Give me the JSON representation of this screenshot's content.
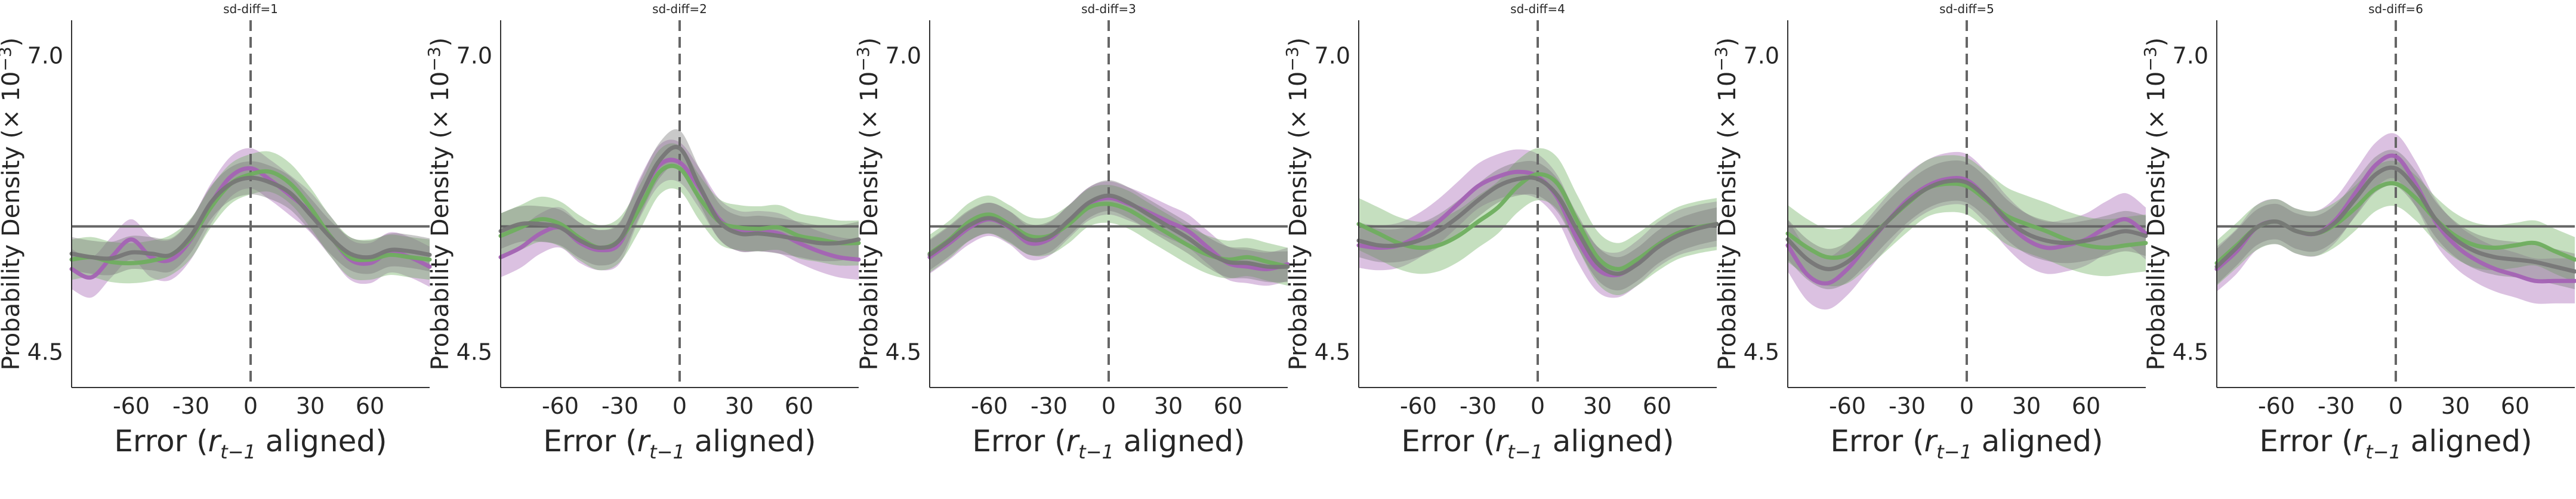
{
  "figure": {
    "xlabel_prefix": "Error (",
    "xlabel_var": "r",
    "xlabel_sub": "t−1",
    "xlabel_suffix": " aligned)",
    "ylabel_prefix": "Probability Density (× 10",
    "ylabel_exp": "−3",
    "ylabel_suffix": ")"
  },
  "colors": {
    "purple": "#a463b4",
    "green": "#6fae5f",
    "gray": "#777777",
    "reference": "#666666"
  },
  "chart_data": [
    {
      "type": "line",
      "title": "sd-diff=1",
      "xlim": [
        -90,
        90
      ],
      "ylim": [
        4.2,
        7.3
      ],
      "xticks": [
        -60,
        -30,
        0,
        30,
        60
      ],
      "xtick_labels": [
        "-60",
        "-30",
        "0",
        "30",
        "60"
      ],
      "yticks": [
        4.5,
        7.0
      ],
      "ytick_labels": [
        "4.5",
        "7.0"
      ],
      "hline": 5.56,
      "vline": 0,
      "x": [
        -90,
        -80,
        -70,
        -60,
        -50,
        -40,
        -30,
        -20,
        -10,
        0,
        10,
        20,
        30,
        40,
        50,
        60,
        70,
        80,
        90
      ],
      "series": [
        {
          "color_key": "purple",
          "values": [
            5.2,
            5.13,
            5.3,
            5.45,
            5.3,
            5.28,
            5.45,
            5.75,
            5.98,
            6.05,
            5.95,
            5.82,
            5.68,
            5.48,
            5.28,
            5.25,
            5.34,
            5.3,
            5.22
          ],
          "band": 0.17
        },
        {
          "color_key": "green",
          "values": [
            5.28,
            5.3,
            5.26,
            5.25,
            5.27,
            5.32,
            5.46,
            5.72,
            5.92,
            6.0,
            6.02,
            5.92,
            5.72,
            5.48,
            5.3,
            5.28,
            5.32,
            5.3,
            5.28
          ],
          "band": 0.17
        },
        {
          "color_key": "gray",
          "values": [
            5.33,
            5.3,
            5.29,
            5.34,
            5.33,
            5.32,
            5.48,
            5.76,
            5.92,
            5.97,
            5.93,
            5.84,
            5.66,
            5.47,
            5.33,
            5.3,
            5.36,
            5.35,
            5.32
          ],
          "band": 0.14
        }
      ]
    },
    {
      "type": "line",
      "title": "sd-diff=2",
      "xlim": [
        -90,
        90
      ],
      "ylim": [
        4.2,
        7.3
      ],
      "xticks": [
        -60,
        -30,
        0,
        30,
        60
      ],
      "xtick_labels": [
        "-60",
        "-30",
        "0",
        "30",
        "60"
      ],
      "yticks": [
        4.5,
        7.0
      ],
      "ytick_labels": [
        "4.5",
        "7.0"
      ],
      "hline": 5.56,
      "vline": 0,
      "x": [
        -90,
        -80,
        -70,
        -60,
        -50,
        -40,
        -30,
        -20,
        -10,
        0,
        10,
        20,
        30,
        40,
        50,
        60,
        70,
        80,
        90
      ],
      "series": [
        {
          "color_key": "purple",
          "values": [
            5.3,
            5.38,
            5.5,
            5.55,
            5.42,
            5.36,
            5.42,
            5.8,
            6.08,
            6.1,
            5.88,
            5.62,
            5.52,
            5.52,
            5.5,
            5.42,
            5.35,
            5.3,
            5.28
          ],
          "band": 0.17
        },
        {
          "color_key": "green",
          "values": [
            5.48,
            5.55,
            5.62,
            5.58,
            5.46,
            5.38,
            5.45,
            5.72,
            6.02,
            6.05,
            5.8,
            5.6,
            5.55,
            5.54,
            5.55,
            5.48,
            5.45,
            5.42,
            5.42
          ],
          "band": 0.19
        },
        {
          "color_key": "gray",
          "values": [
            5.52,
            5.58,
            5.58,
            5.55,
            5.44,
            5.38,
            5.45,
            5.8,
            6.12,
            6.22,
            5.9,
            5.6,
            5.5,
            5.5,
            5.48,
            5.45,
            5.42,
            5.42,
            5.45
          ],
          "band": 0.15
        }
      ]
    },
    {
      "type": "line",
      "title": "sd-diff=3",
      "xlim": [
        -90,
        90
      ],
      "ylim": [
        4.2,
        7.3
      ],
      "xticks": [
        -60,
        -30,
        0,
        30,
        60
      ],
      "xtick_labels": [
        "-60",
        "-30",
        "0",
        "30",
        "60"
      ],
      "yticks": [
        4.5,
        7.0
      ],
      "ytick_labels": [
        "4.5",
        "7.0"
      ],
      "hline": 5.56,
      "vline": 0,
      "x": [
        -90,
        -80,
        -70,
        -60,
        -50,
        -40,
        -30,
        -20,
        -10,
        0,
        10,
        20,
        30,
        40,
        50,
        60,
        70,
        80,
        90
      ],
      "series": [
        {
          "color_key": "purple",
          "values": [
            5.3,
            5.42,
            5.55,
            5.62,
            5.55,
            5.42,
            5.45,
            5.6,
            5.75,
            5.8,
            5.75,
            5.68,
            5.6,
            5.52,
            5.38,
            5.25,
            5.22,
            5.2,
            5.24
          ],
          "band": 0.14
        },
        {
          "color_key": "green",
          "values": [
            5.33,
            5.45,
            5.6,
            5.66,
            5.58,
            5.48,
            5.48,
            5.58,
            5.72,
            5.75,
            5.7,
            5.6,
            5.5,
            5.4,
            5.32,
            5.28,
            5.3,
            5.26,
            5.22
          ],
          "band": 0.16
        },
        {
          "color_key": "gray",
          "values": [
            5.32,
            5.44,
            5.57,
            5.63,
            5.56,
            5.45,
            5.47,
            5.61,
            5.76,
            5.82,
            5.76,
            5.66,
            5.56,
            5.46,
            5.34,
            5.26,
            5.25,
            5.22,
            5.22
          ],
          "band": 0.13
        }
      ]
    },
    {
      "type": "line",
      "title": "sd-diff=4",
      "xlim": [
        -90,
        90
      ],
      "ylim": [
        4.2,
        7.3
      ],
      "xticks": [
        -60,
        -30,
        0,
        30,
        60
      ],
      "xtick_labels": [
        "-60",
        "-30",
        "0",
        "30",
        "60"
      ],
      "yticks": [
        4.5,
        7.0
      ],
      "ytick_labels": [
        "4.5",
        "7.0"
      ],
      "hline": 5.56,
      "vline": 0,
      "x": [
        -90,
        -80,
        -70,
        -60,
        -50,
        -40,
        -30,
        -20,
        -10,
        0,
        10,
        20,
        30,
        40,
        50,
        60,
        70,
        80,
        90
      ],
      "series": [
        {
          "color_key": "purple",
          "values": [
            5.4,
            5.38,
            5.4,
            5.48,
            5.6,
            5.75,
            5.9,
            5.98,
            6.02,
            5.98,
            5.8,
            5.45,
            5.2,
            5.15,
            5.25,
            5.4,
            5.5,
            5.55,
            5.58
          ],
          "band": 0.19
        },
        {
          "color_key": "green",
          "values": [
            5.58,
            5.5,
            5.42,
            5.38,
            5.4,
            5.48,
            5.6,
            5.72,
            5.9,
            6.0,
            5.92,
            5.6,
            5.3,
            5.2,
            5.28,
            5.4,
            5.5,
            5.55,
            5.58
          ],
          "band": 0.22
        },
        {
          "color_key": "gray",
          "values": [
            5.44,
            5.4,
            5.4,
            5.44,
            5.52,
            5.64,
            5.78,
            5.9,
            5.96,
            5.96,
            5.82,
            5.52,
            5.25,
            5.16,
            5.24,
            5.38,
            5.48,
            5.54,
            5.58
          ],
          "band": 0.14
        }
      ]
    },
    {
      "type": "line",
      "title": "sd-diff=5",
      "xlim": [
        -90,
        90
      ],
      "ylim": [
        4.2,
        7.3
      ],
      "xticks": [
        -60,
        -30,
        0,
        30,
        60
      ],
      "xtick_labels": [
        "-60",
        "-30",
        "0",
        "30",
        "60"
      ],
      "yticks": [
        4.5,
        7.0
      ],
      "ytick_labels": [
        "4.5",
        "7.0"
      ],
      "hline": 5.56,
      "vline": 0,
      "x": [
        -90,
        -80,
        -70,
        -60,
        -50,
        -40,
        -30,
        -20,
        -10,
        0,
        10,
        20,
        30,
        40,
        50,
        60,
        70,
        80,
        90
      ],
      "series": [
        {
          "color_key": "purple",
          "values": [
            5.4,
            5.15,
            5.08,
            5.2,
            5.4,
            5.6,
            5.78,
            5.9,
            5.96,
            5.95,
            5.8,
            5.6,
            5.45,
            5.38,
            5.4,
            5.45,
            5.55,
            5.62,
            5.5
          ],
          "band": 0.22
        },
        {
          "color_key": "green",
          "values": [
            5.5,
            5.38,
            5.3,
            5.32,
            5.45,
            5.6,
            5.75,
            5.88,
            5.92,
            5.9,
            5.78,
            5.65,
            5.58,
            5.52,
            5.45,
            5.4,
            5.38,
            5.4,
            5.42
          ],
          "band": 0.24
        },
        {
          "color_key": "gray",
          "values": [
            5.45,
            5.28,
            5.2,
            5.26,
            5.42,
            5.6,
            5.76,
            5.88,
            5.94,
            5.93,
            5.8,
            5.62,
            5.5,
            5.44,
            5.42,
            5.44,
            5.48,
            5.52,
            5.48
          ],
          "band": 0.17
        }
      ]
    },
    {
      "type": "line",
      "title": "sd-diff=6",
      "xlim": [
        -90,
        90
      ],
      "ylim": [
        4.2,
        7.3
      ],
      "xticks": [
        -60,
        -30,
        0,
        30,
        60
      ],
      "xtick_labels": [
        "-60",
        "-30",
        "0",
        "30",
        "60"
      ],
      "yticks": [
        4.5,
        7.0
      ],
      "ytick_labels": [
        "4.5",
        "7.0"
      ],
      "hline": 5.56,
      "vline": 0,
      "x": [
        -90,
        -80,
        -70,
        -60,
        -50,
        -40,
        -30,
        -20,
        -10,
        0,
        10,
        20,
        30,
        40,
        50,
        60,
        70,
        80,
        90
      ],
      "series": [
        {
          "color_key": "purple",
          "values": [
            5.2,
            5.35,
            5.55,
            5.6,
            5.52,
            5.5,
            5.62,
            5.85,
            6.08,
            6.15,
            5.92,
            5.6,
            5.4,
            5.28,
            5.2,
            5.15,
            5.1,
            5.1,
            5.1
          ],
          "band": 0.19
        },
        {
          "color_key": "green",
          "values": [
            5.25,
            5.4,
            5.55,
            5.6,
            5.52,
            5.5,
            5.58,
            5.72,
            5.88,
            5.92,
            5.8,
            5.62,
            5.48,
            5.4,
            5.38,
            5.4,
            5.42,
            5.35,
            5.28
          ],
          "band": 0.19
        },
        {
          "color_key": "gray",
          "values": [
            5.22,
            5.38,
            5.55,
            5.6,
            5.52,
            5.5,
            5.6,
            5.8,
            6.0,
            6.05,
            5.88,
            5.62,
            5.45,
            5.35,
            5.3,
            5.28,
            5.26,
            5.22,
            5.18
          ],
          "band": 0.15
        }
      ]
    }
  ]
}
